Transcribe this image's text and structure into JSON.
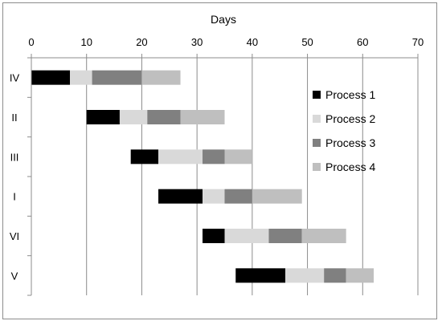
{
  "chart_data": {
    "type": "bar",
    "orientation": "horizontal-stacked",
    "title": "",
    "xlabel": "Days",
    "ylabel": "",
    "xlim": [
      0,
      70
    ],
    "x_ticks": [
      0,
      10,
      20,
      30,
      40,
      50,
      60,
      70
    ],
    "x_axis_position": "top",
    "grid": "vertical major gridlines",
    "legend_position": "right",
    "categories": [
      "IV",
      "II",
      "III",
      "I",
      "VI",
      "V"
    ],
    "start": [
      0,
      10,
      18,
      23,
      31,
      37
    ],
    "series": [
      {
        "name": "Process 1",
        "color": "#000000",
        "values": [
          7,
          6,
          5,
          8,
          4,
          9
        ]
      },
      {
        "name": "Process 2",
        "color": "#d9d9d9",
        "values": [
          4,
          5,
          8,
          4,
          8,
          7
        ]
      },
      {
        "name": "Process 3",
        "color": "#808080",
        "values": [
          9,
          6,
          4,
          5,
          6,
          4
        ]
      },
      {
        "name": "Process 4",
        "color": "#bfbfbf",
        "values": [
          7,
          8,
          5,
          9,
          8,
          5
        ]
      }
    ]
  }
}
